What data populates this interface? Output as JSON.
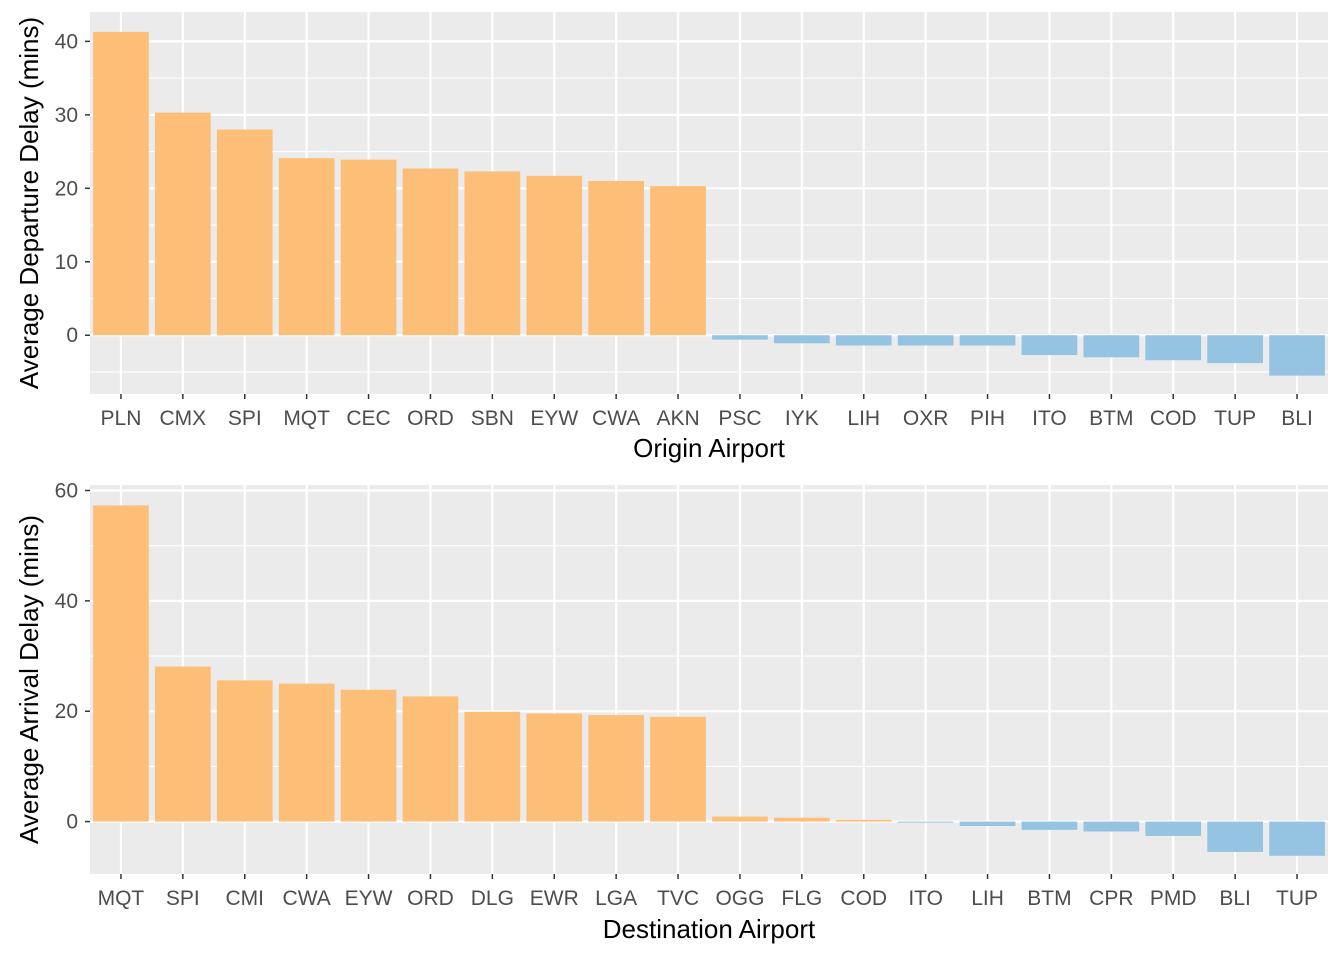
{
  "colors": {
    "positive": "#fdbf78",
    "negative": "#94c4e2",
    "panel_bg": "#ebebeb",
    "grid": "#ffffff"
  },
  "chart_data": [
    {
      "type": "bar",
      "xlabel": "Origin Airport",
      "ylabel": "Average Departure Delay (mins)",
      "ylim": [
        -8,
        44
      ],
      "yticks": [
        0,
        10,
        20,
        30,
        40
      ],
      "grid": true,
      "categories": [
        "PLN",
        "CMX",
        "SPI",
        "MQT",
        "CEC",
        "ORD",
        "SBN",
        "EYW",
        "CWA",
        "AKN",
        "PSC",
        "IYK",
        "LIH",
        "OXR",
        "PIH",
        "ITO",
        "BTM",
        "COD",
        "TUP",
        "BLI"
      ],
      "values": [
        41.3,
        30.3,
        28.0,
        24.1,
        23.9,
        22.7,
        22.3,
        21.7,
        21.0,
        20.3,
        -0.6,
        -1.1,
        -1.4,
        -1.4,
        -1.4,
        -2.7,
        -3.0,
        -3.4,
        -3.8,
        -5.5
      ]
    },
    {
      "type": "bar",
      "xlabel": "Destination Airport",
      "ylabel": "Average Arrival Delay (mins)",
      "ylim": [
        -9.5,
        61
      ],
      "yticks": [
        0,
        20,
        40,
        60
      ],
      "grid": true,
      "categories": [
        "MQT",
        "SPI",
        "CMI",
        "CWA",
        "EYW",
        "ORD",
        "DLG",
        "EWR",
        "LGA",
        "TVC",
        "OGG",
        "FLG",
        "COD",
        "ITO",
        "LIH",
        "BTM",
        "CPR",
        "PMD",
        "BLI",
        "TUP"
      ],
      "values": [
        57.3,
        28.1,
        25.6,
        25.0,
        23.9,
        22.7,
        19.9,
        19.6,
        19.3,
        19.0,
        0.9,
        0.7,
        0.3,
        -0.1,
        -0.8,
        -1.5,
        -1.8,
        -2.6,
        -5.5,
        -6.2
      ]
    }
  ]
}
